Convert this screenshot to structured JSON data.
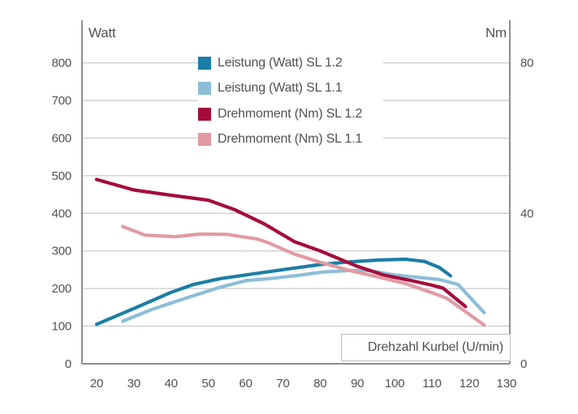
{
  "chart_data": {
    "type": "line",
    "title": "",
    "left_axis": {
      "label": "Watt",
      "ticks": [
        0,
        100,
        200,
        300,
        400,
        500,
        600,
        700,
        800
      ],
      "range": [
        0,
        910
      ]
    },
    "right_axis": {
      "label": "Nm",
      "ticks": [
        0,
        40,
        80
      ],
      "range": [
        0,
        91
      ]
    },
    "x_axis": {
      "label": "Drehzahl Kurbel (U/min)",
      "ticks": [
        20,
        30,
        40,
        50,
        60,
        70,
        80,
        90,
        100,
        110,
        120,
        130
      ],
      "range": [
        16,
        131
      ]
    },
    "grid": "horizontal gridlines every 100 Watt (10 Nm), legend box and axis-label box overlap grid",
    "legend_position": "top-center-inside",
    "series": [
      {
        "name": "Leistung (Watt) SL 1.2",
        "axis": "left",
        "unit": "Watt",
        "color": "#1b7ea6",
        "points": [
          [
            20,
            105
          ],
          [
            30,
            147
          ],
          [
            40,
            190
          ],
          [
            46,
            211
          ],
          [
            53,
            226
          ],
          [
            62,
            239
          ],
          [
            72,
            253
          ],
          [
            80,
            264
          ],
          [
            88,
            271
          ],
          [
            96,
            276
          ],
          [
            103,
            278
          ],
          [
            108,
            272
          ],
          [
            112,
            256
          ],
          [
            115,
            234
          ]
        ]
      },
      {
        "name": "Leistung (Watt) SL 1.1",
        "axis": "left",
        "unit": "Watt",
        "color": "#8cbed8",
        "points": [
          [
            27,
            113
          ],
          [
            35,
            145
          ],
          [
            45,
            178
          ],
          [
            53,
            203
          ],
          [
            60,
            221
          ],
          [
            68,
            228
          ],
          [
            74,
            235
          ],
          [
            81,
            244
          ],
          [
            88,
            248
          ],
          [
            93,
            248
          ],
          [
            100,
            236
          ],
          [
            107,
            229
          ],
          [
            112,
            224
          ],
          [
            117,
            211
          ],
          [
            124,
            136
          ]
        ]
      },
      {
        "name": "Drehmoment (Nm) SL 1.2",
        "axis": "right",
        "unit": "Nm",
        "color": "#a50c3b",
        "points": [
          [
            20,
            49
          ],
          [
            30,
            46.2
          ],
          [
            40,
            44.8
          ],
          [
            50,
            43.5
          ],
          [
            57,
            41
          ],
          [
            65,
            37.2
          ],
          [
            73,
            32.5
          ],
          [
            80,
            30
          ],
          [
            90,
            25.9
          ],
          [
            97,
            23.6
          ],
          [
            104,
            22.2
          ],
          [
            110,
            20.9
          ],
          [
            113,
            20.1
          ],
          [
            119,
            15.2
          ]
        ]
      },
      {
        "name": "Drehmoment (Nm) SL 1.1",
        "axis": "right",
        "unit": "Nm",
        "color": "#e29aa2",
        "points": [
          [
            27,
            36.5
          ],
          [
            33,
            34.2
          ],
          [
            41,
            33.8
          ],
          [
            48,
            34.5
          ],
          [
            55,
            34.4
          ],
          [
            63,
            33.2
          ],
          [
            66,
            32.2
          ],
          [
            73,
            29.2
          ],
          [
            80,
            27
          ],
          [
            88,
            24.8
          ],
          [
            95,
            23.2
          ],
          [
            103,
            21.3
          ],
          [
            110,
            18.9
          ],
          [
            114,
            17.4
          ],
          [
            124,
            10.3
          ]
        ]
      }
    ],
    "colors": {
      "grid": "#cccccc",
      "axis": "#8e8e8e",
      "text": "#515153",
      "background": "#ffffff"
    }
  }
}
